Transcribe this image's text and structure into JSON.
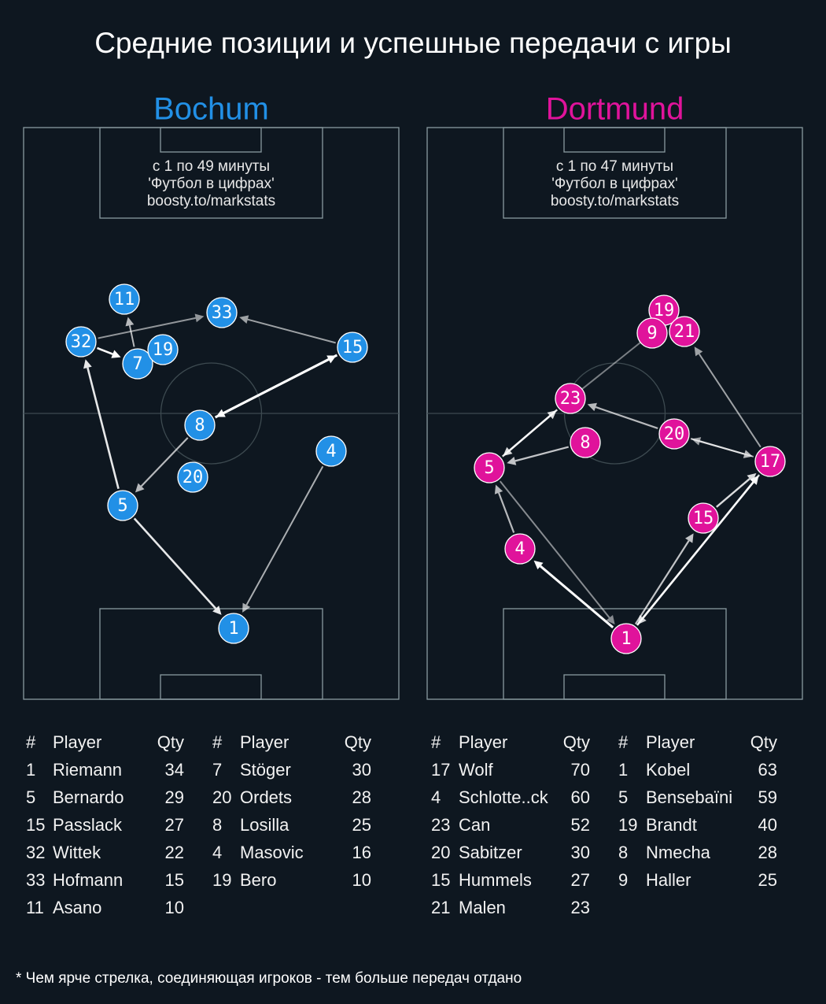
{
  "title": "Средние позиции и успешные передачи с игры",
  "footnote": "* Чем ярче стрелка, соединяющая игроков - тем больше передач отдано",
  "teams": [
    {
      "name": "Bochum",
      "notes": [
        "с 1 по 49 минуты",
        "'Футбол в цифрах'",
        "boosty.to/markstats"
      ],
      "nodes": [
        "11",
        "33",
        "32",
        "7",
        "19",
        "15",
        "8",
        "4",
        "20",
        "5",
        "1"
      ],
      "table": {
        "header": [
          "#",
          "Player",
          "Qty"
        ],
        "columns": [
          [
            [
              1,
              "Riemann",
              34
            ],
            [
              5,
              "Bernardo",
              29
            ],
            [
              15,
              "Passlack",
              27
            ],
            [
              32,
              "Wittek",
              22
            ],
            [
              33,
              "Hofmann",
              15
            ],
            [
              11,
              "Asano",
              10
            ]
          ],
          [
            [
              7,
              "Stöger",
              30
            ],
            [
              20,
              "Ordets",
              28
            ],
            [
              8,
              "Losilla",
              25
            ],
            [
              4,
              "Masovic",
              16
            ],
            [
              19,
              "Bero",
              10
            ]
          ]
        ]
      }
    },
    {
      "name": "Dortmund",
      "notes": [
        "с 1 по 47 минуты",
        "'Футбол в цифрах'",
        "boosty.to/markstats"
      ],
      "nodes": [
        "19",
        "9",
        "21",
        "23",
        "20",
        "8",
        "17",
        "5",
        "15",
        "4",
        "1"
      ],
      "table": {
        "header": [
          "#",
          "Player",
          "Qty"
        ],
        "columns": [
          [
            [
              17,
              "Wolf",
              70
            ],
            [
              4,
              "Schlotte..ck",
              60
            ],
            [
              23,
              "Can",
              52
            ],
            [
              20,
              "Sabitzer",
              30
            ],
            [
              15,
              "Hummels",
              27
            ],
            [
              21,
              "Malen",
              23
            ]
          ],
          [
            [
              1,
              "Kobel",
              63
            ],
            [
              5,
              "Bensebaïni",
              59
            ],
            [
              19,
              "Brandt",
              40
            ],
            [
              8,
              "Nmecha",
              28
            ],
            [
              9,
              "Haller",
              25
            ]
          ]
        ]
      }
    }
  ]
}
